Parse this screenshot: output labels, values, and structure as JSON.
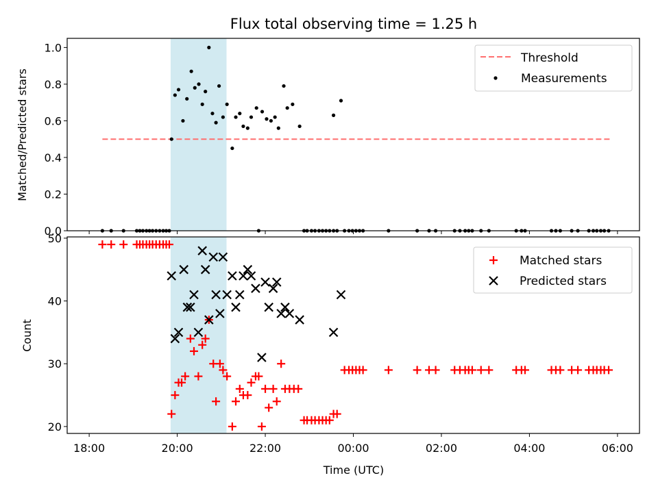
{
  "chart_data": [
    {
      "type": "scatter",
      "title": "Flux total observing time = 1.25 h",
      "xlabel": "",
      "ylabel": "Matched/Predicted stars",
      "xlim": [
        17.5,
        30.5
      ],
      "ylim": [
        0,
        1.05
      ],
      "yticks": [
        "0.0",
        "0.2",
        "0.4",
        "0.6",
        "0.8",
        "1.0"
      ],
      "shaded_region": {
        "x_start": 19.85,
        "x_end": 21.12,
        "color": "#add8e6"
      },
      "legend": [
        "Threshold",
        "Measurements"
      ],
      "series": [
        {
          "name": "Threshold",
          "style": "dashed-line",
          "color": "#ff6e6e",
          "x": [
            18.3,
            29.85
          ],
          "y": [
            0.5,
            0.5
          ]
        },
        {
          "name": "Measurements",
          "style": "dot",
          "color": "#000000",
          "points": [
            [
              19.87,
              0.5
            ],
            [
              19.95,
              0.74
            ],
            [
              20.03,
              0.77
            ],
            [
              20.13,
              0.6
            ],
            [
              20.22,
              0.72
            ],
            [
              20.32,
              0.87
            ],
            [
              20.4,
              0.78
            ],
            [
              20.49,
              0.8
            ],
            [
              20.57,
              0.69
            ],
            [
              20.64,
              0.76
            ],
            [
              20.72,
              1.0
            ],
            [
              20.8,
              0.64
            ],
            [
              20.88,
              0.59
            ],
            [
              20.95,
              0.79
            ],
            [
              21.04,
              0.62
            ],
            [
              21.13,
              0.69
            ],
            [
              21.25,
              0.45
            ],
            [
              21.33,
              0.62
            ],
            [
              21.42,
              0.64
            ],
            [
              21.5,
              0.57
            ],
            [
              21.6,
              0.56
            ],
            [
              21.68,
              0.62
            ],
            [
              21.8,
              0.67
            ],
            [
              21.93,
              0.65
            ],
            [
              22.03,
              0.61
            ],
            [
              22.13,
              0.6
            ],
            [
              22.22,
              0.62
            ],
            [
              22.3,
              0.56
            ],
            [
              22.42,
              0.79
            ],
            [
              22.5,
              0.67
            ],
            [
              22.62,
              0.69
            ],
            [
              22.78,
              0.57
            ],
            [
              23.55,
              0.63
            ],
            [
              23.72,
              0.71
            ],
            [
              18.3,
              0
            ],
            [
              18.5,
              0
            ],
            [
              18.78,
              0
            ],
            [
              19.08,
              0
            ],
            [
              19.15,
              0
            ],
            [
              19.22,
              0
            ],
            [
              19.3,
              0
            ],
            [
              19.37,
              0
            ],
            [
              19.44,
              0
            ],
            [
              19.52,
              0
            ],
            [
              19.6,
              0
            ],
            [
              19.68,
              0
            ],
            [
              19.75,
              0
            ],
            [
              19.82,
              0
            ],
            [
              21.85,
              0
            ],
            [
              22.88,
              0
            ],
            [
              22.95,
              0
            ],
            [
              23.05,
              0
            ],
            [
              23.13,
              0
            ],
            [
              23.22,
              0
            ],
            [
              23.3,
              0
            ],
            [
              23.38,
              0
            ],
            [
              23.46,
              0
            ],
            [
              23.55,
              0
            ],
            [
              23.63,
              0
            ],
            [
              23.8,
              0
            ],
            [
              23.9,
              0
            ],
            [
              23.98,
              0
            ],
            [
              24.06,
              0
            ],
            [
              24.14,
              0
            ],
            [
              24.22,
              0
            ],
            [
              24.8,
              0
            ],
            [
              25.45,
              0
            ],
            [
              25.72,
              0
            ],
            [
              25.87,
              0
            ],
            [
              26.3,
              0
            ],
            [
              26.42,
              0
            ],
            [
              26.54,
              0
            ],
            [
              26.62,
              0
            ],
            [
              26.7,
              0
            ],
            [
              26.9,
              0
            ],
            [
              27.08,
              0
            ],
            [
              27.7,
              0
            ],
            [
              27.82,
              0
            ],
            [
              27.9,
              0
            ],
            [
              28.5,
              0
            ],
            [
              28.6,
              0
            ],
            [
              28.7,
              0
            ],
            [
              28.96,
              0
            ],
            [
              29.1,
              0
            ],
            [
              29.35,
              0
            ],
            [
              29.45,
              0
            ],
            [
              29.53,
              0
            ],
            [
              29.62,
              0
            ],
            [
              29.7,
              0
            ],
            [
              29.8,
              0
            ]
          ]
        }
      ]
    },
    {
      "type": "scatter",
      "title": "",
      "xlabel": "Time (UTC)",
      "ylabel": "Count",
      "xlim": [
        17.5,
        30.5
      ],
      "ylim": [
        18.9,
        50.2
      ],
      "xticks": [
        18,
        20,
        22,
        24,
        26,
        28,
        30
      ],
      "xtick_labels": [
        "18:00",
        "20:00",
        "22:00",
        "00:00",
        "02:00",
        "04:00",
        "06:00"
      ],
      "yticks": [
        "20",
        "30",
        "40",
        "50"
      ],
      "shaded_region": {
        "x_start": 19.85,
        "x_end": 21.12,
        "color": "#add8e6"
      },
      "legend": [
        "Matched stars",
        "Predicted stars"
      ],
      "series": [
        {
          "name": "Matched stars",
          "marker": "plus",
          "color": "#ff0000",
          "points": [
            [
              18.3,
              49
            ],
            [
              18.5,
              49
            ],
            [
              18.78,
              49
            ],
            [
              19.08,
              49
            ],
            [
              19.15,
              49
            ],
            [
              19.22,
              49
            ],
            [
              19.3,
              49
            ],
            [
              19.37,
              49
            ],
            [
              19.44,
              49
            ],
            [
              19.52,
              49
            ],
            [
              19.6,
              49
            ],
            [
              19.68,
              49
            ],
            [
              19.75,
              49
            ],
            [
              19.82,
              49
            ],
            [
              19.87,
              22
            ],
            [
              19.95,
              25
            ],
            [
              20.03,
              27
            ],
            [
              20.1,
              27
            ],
            [
              20.18,
              28
            ],
            [
              20.3,
              34
            ],
            [
              20.38,
              32
            ],
            [
              20.48,
              28
            ],
            [
              20.57,
              33
            ],
            [
              20.64,
              34
            ],
            [
              20.72,
              37
            ],
            [
              20.82,
              30
            ],
            [
              20.88,
              24
            ],
            [
              20.97,
              30
            ],
            [
              21.04,
              29
            ],
            [
              21.13,
              28
            ],
            [
              21.25,
              20
            ],
            [
              21.33,
              24
            ],
            [
              21.42,
              26
            ],
            [
              21.5,
              25
            ],
            [
              21.6,
              25
            ],
            [
              21.68,
              27
            ],
            [
              21.78,
              28
            ],
            [
              21.85,
              28
            ],
            [
              21.92,
              20
            ],
            [
              22.0,
              26
            ],
            [
              22.08,
              23
            ],
            [
              22.18,
              26
            ],
            [
              22.26,
              24
            ],
            [
              22.36,
              30
            ],
            [
              22.45,
              26
            ],
            [
              22.55,
              26
            ],
            [
              22.65,
              26
            ],
            [
              22.75,
              26
            ],
            [
              22.88,
              21
            ],
            [
              22.95,
              21
            ],
            [
              23.05,
              21
            ],
            [
              23.13,
              21
            ],
            [
              23.22,
              21
            ],
            [
              23.3,
              21
            ],
            [
              23.38,
              21
            ],
            [
              23.46,
              21
            ],
            [
              23.55,
              22
            ],
            [
              23.63,
              22
            ],
            [
              23.8,
              29
            ],
            [
              23.9,
              29
            ],
            [
              23.98,
              29
            ],
            [
              24.06,
              29
            ],
            [
              24.14,
              29
            ],
            [
              24.22,
              29
            ],
            [
              24.8,
              29
            ],
            [
              25.45,
              29
            ],
            [
              25.72,
              29
            ],
            [
              25.87,
              29
            ],
            [
              26.3,
              29
            ],
            [
              26.42,
              29
            ],
            [
              26.54,
              29
            ],
            [
              26.62,
              29
            ],
            [
              26.7,
              29
            ],
            [
              26.9,
              29
            ],
            [
              27.08,
              29
            ],
            [
              27.7,
              29
            ],
            [
              27.82,
              29
            ],
            [
              27.9,
              29
            ],
            [
              28.5,
              29
            ],
            [
              28.6,
              29
            ],
            [
              28.7,
              29
            ],
            [
              28.96,
              29
            ],
            [
              29.1,
              29
            ],
            [
              29.35,
              29
            ],
            [
              29.45,
              29
            ],
            [
              29.53,
              29
            ],
            [
              29.62,
              29
            ],
            [
              29.7,
              29
            ],
            [
              29.8,
              29
            ]
          ]
        },
        {
          "name": "Predicted stars",
          "marker": "x",
          "color": "#000000",
          "points": [
            [
              19.87,
              44
            ],
            [
              19.95,
              34
            ],
            [
              20.03,
              35
            ],
            [
              20.15,
              45
            ],
            [
              20.23,
              39
            ],
            [
              20.3,
              39
            ],
            [
              20.38,
              41
            ],
            [
              20.48,
              35
            ],
            [
              20.57,
              48
            ],
            [
              20.64,
              45
            ],
            [
              20.72,
              37
            ],
            [
              20.82,
              47
            ],
            [
              20.88,
              41
            ],
            [
              20.97,
              38
            ],
            [
              21.04,
              47
            ],
            [
              21.13,
              41
            ],
            [
              21.25,
              44
            ],
            [
              21.33,
              39
            ],
            [
              21.42,
              41
            ],
            [
              21.5,
              44
            ],
            [
              21.6,
              45
            ],
            [
              21.68,
              44
            ],
            [
              21.78,
              42
            ],
            [
              21.92,
              31
            ],
            [
              22.0,
              43
            ],
            [
              22.08,
              39
            ],
            [
              22.18,
              42
            ],
            [
              22.26,
              43
            ],
            [
              22.36,
              38
            ],
            [
              22.45,
              39
            ],
            [
              22.55,
              38
            ],
            [
              22.78,
              37
            ],
            [
              23.55,
              35
            ],
            [
              23.72,
              41
            ]
          ]
        }
      ]
    }
  ]
}
